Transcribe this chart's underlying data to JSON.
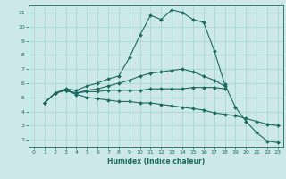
{
  "bg_color": "#cce8e8",
  "grid_color": "#99cccc",
  "line_color": "#1a6a60",
  "xlabel": "Humidex (Indice chaleur)",
  "xlim": [
    -0.5,
    23.5
  ],
  "ylim": [
    1.5,
    11.5
  ],
  "xticks": [
    0,
    1,
    2,
    3,
    4,
    5,
    6,
    7,
    8,
    9,
    10,
    11,
    12,
    13,
    14,
    15,
    16,
    17,
    18,
    19,
    20,
    21,
    22,
    23
  ],
  "yticks": [
    2,
    3,
    4,
    5,
    6,
    7,
    8,
    9,
    10,
    11
  ],
  "line1_x": [
    1,
    2,
    3,
    4,
    5,
    6,
    7,
    8,
    9,
    10,
    11,
    12,
    13,
    14,
    15,
    16,
    17,
    18,
    19,
    20,
    21,
    22,
    23
  ],
  "line1_y": [
    4.6,
    5.3,
    5.6,
    5.5,
    5.8,
    6.0,
    6.3,
    6.5,
    7.8,
    9.4,
    10.8,
    10.5,
    11.2,
    11.0,
    10.5,
    10.3,
    8.3,
    5.9,
    4.3,
    3.3,
    2.5,
    1.9,
    1.8
  ],
  "line2_x": [
    1,
    2,
    3,
    4,
    5,
    6,
    7,
    8,
    9,
    10,
    11,
    12,
    13,
    14,
    15,
    16,
    17,
    18
  ],
  "line2_y": [
    4.6,
    5.3,
    5.5,
    5.3,
    5.5,
    5.6,
    5.8,
    6.0,
    6.2,
    6.5,
    6.7,
    6.8,
    6.9,
    7.0,
    6.8,
    6.5,
    6.2,
    5.8
  ],
  "line3_x": [
    1,
    2,
    3,
    4,
    5,
    6,
    7,
    8,
    9,
    10,
    11,
    12,
    13,
    14,
    15,
    16,
    17,
    18
  ],
  "line3_y": [
    4.6,
    5.3,
    5.5,
    5.3,
    5.4,
    5.4,
    5.5,
    5.5,
    5.5,
    5.5,
    5.6,
    5.6,
    5.6,
    5.6,
    5.7,
    5.7,
    5.7,
    5.6
  ],
  "line4_x": [
    1,
    2,
    3,
    4,
    5,
    6,
    7,
    8,
    9,
    10,
    11,
    12,
    13,
    14,
    15,
    16,
    17,
    18,
    19,
    20,
    21,
    22,
    23
  ],
  "line4_y": [
    4.6,
    5.3,
    5.5,
    5.2,
    5.0,
    4.9,
    4.8,
    4.7,
    4.7,
    4.6,
    4.6,
    4.5,
    4.4,
    4.3,
    4.2,
    4.1,
    3.9,
    3.8,
    3.7,
    3.5,
    3.3,
    3.1,
    3.0
  ]
}
